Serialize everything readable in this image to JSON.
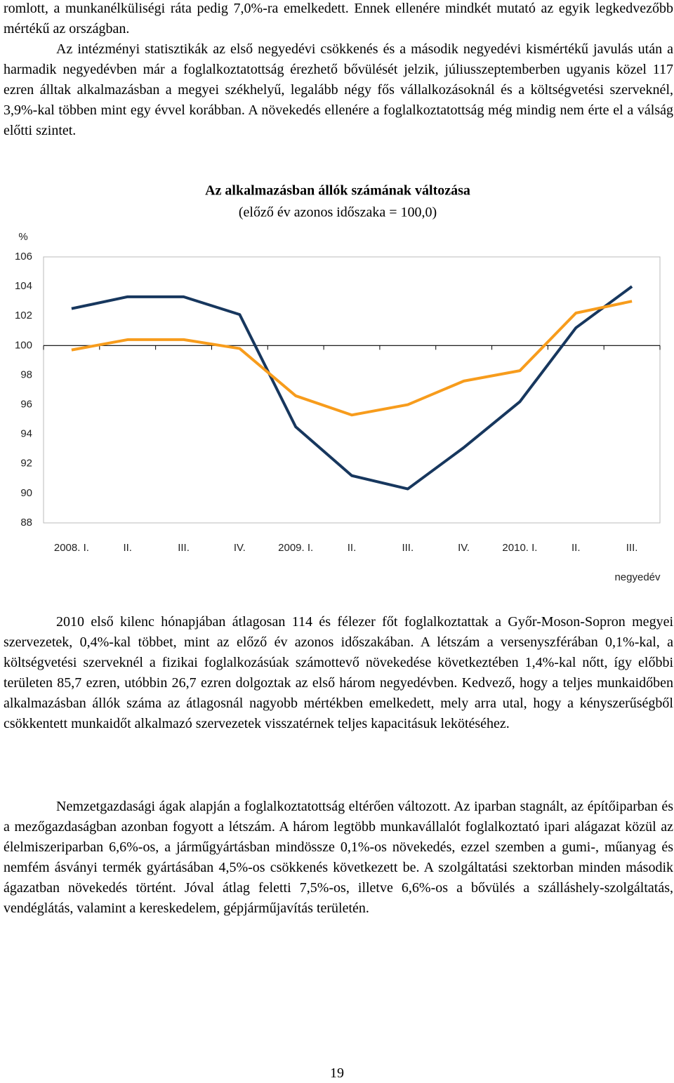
{
  "paragraphs": [
    "romlott, a munkanélküliségi ráta pedig 7,0%-ra emelkedett. Ennek ellenére mindkét mutató az egyik legkedvezőbb mértékű az országban.",
    "Az intézményi statisztikák az első negyedévi csökkenés és a második negyedévi kismértékű javulás után a harmadik negyedévben már a foglalkoztatottság érezhető bővülését jelzik, júliusszeptemberben ugyanis közel 117 ezren álltak alkalmazásban a megyei székhelyű, legalább négy fős vállalkozásoknál és a költségvetési szerveknél, 3,9%-kal többen mint egy évvel korábban. A növekedés ellenére a foglalkoztatottság még mindig nem érte el a válság előtti szintet.",
    "2010 első kilenc hónapjában átlagosan 114 és félezer főt foglalkoztattak a Győr-Moson-Sopron megyei szervezetek, 0,4%-kal többet, mint az előző év azonos időszakában. A létszám a versenyszférában 0,1%-kal, a költségvetési szerveknél a fizikai foglalkozásúak számottevő növekedése következtében 1,4%-kal nőtt, így előbbi területen 85,7 ezren, utóbbin 26,7 ezren dolgoztak az első három negyedévben. Kedvező, hogy a teljes munkaidőben alkalmazásban állók száma az átlagosnál nagyobb mértékben emelkedett, mely arra utal, hogy a kényszerűségből csökkentett munkaidőt alkalmazó szervezetek visszatérnek teljes kapacitásuk lekötéséhez.",
    "Nemzetgazdasági ágak alapján a foglalkoztatottság eltérően változott. Az iparban stagnált, az építőiparban és a mezőgazdaságban azonban fogyott a létszám. A három legtöbb munkavállalót foglalkoztató ipari alágazat közül az élelmiszeriparban 6,6%-os, a járműgyártásban mindössze 0,1%-os növekedés, ezzel szemben a gumi-, műanyag és nemfém ásványi termék gyártásában 4,5%-os csökkenés következett be. A szolgáltatási szektorban minden második ágazatban növekedés történt. Jóval átlag feletti 7,5%-os, illetve 6,6%-os a bővülés a szálláshely-szolgáltatás, vendéglátás, valamint a kereskedelem, gépjárműjavítás területén."
  ],
  "page_number": "19",
  "chart_data": {
    "type": "line",
    "title": "Az alkalmazásban állók számának változása",
    "subtitle": "(előző év azonos időszaka = 100,0)",
    "y_label": "%",
    "x_label": "negyedév",
    "categories": [
      "2008. I.",
      "II.",
      "III.",
      "IV.",
      "2009. I.",
      "II.",
      "III.",
      "IV.",
      "2010. I.",
      "II.",
      "III."
    ],
    "series": [
      {
        "color": "#17375e",
        "values": [
          102.5,
          103.3,
          103.3,
          102.1,
          94.5,
          91.2,
          90.3,
          93.1,
          96.2,
          101.2,
          104.0
        ]
      },
      {
        "color": "#f79c1c",
        "values": [
          99.7,
          100.4,
          100.4,
          99.8,
          96.6,
          95.3,
          96.0,
          97.6,
          98.3,
          102.2,
          103.0
        ]
      }
    ],
    "ylim": [
      88,
      106
    ],
    "yticks": [
      88,
      90,
      92,
      94,
      96,
      98,
      100,
      102,
      104,
      106
    ],
    "baseline": 100,
    "grid": false
  }
}
